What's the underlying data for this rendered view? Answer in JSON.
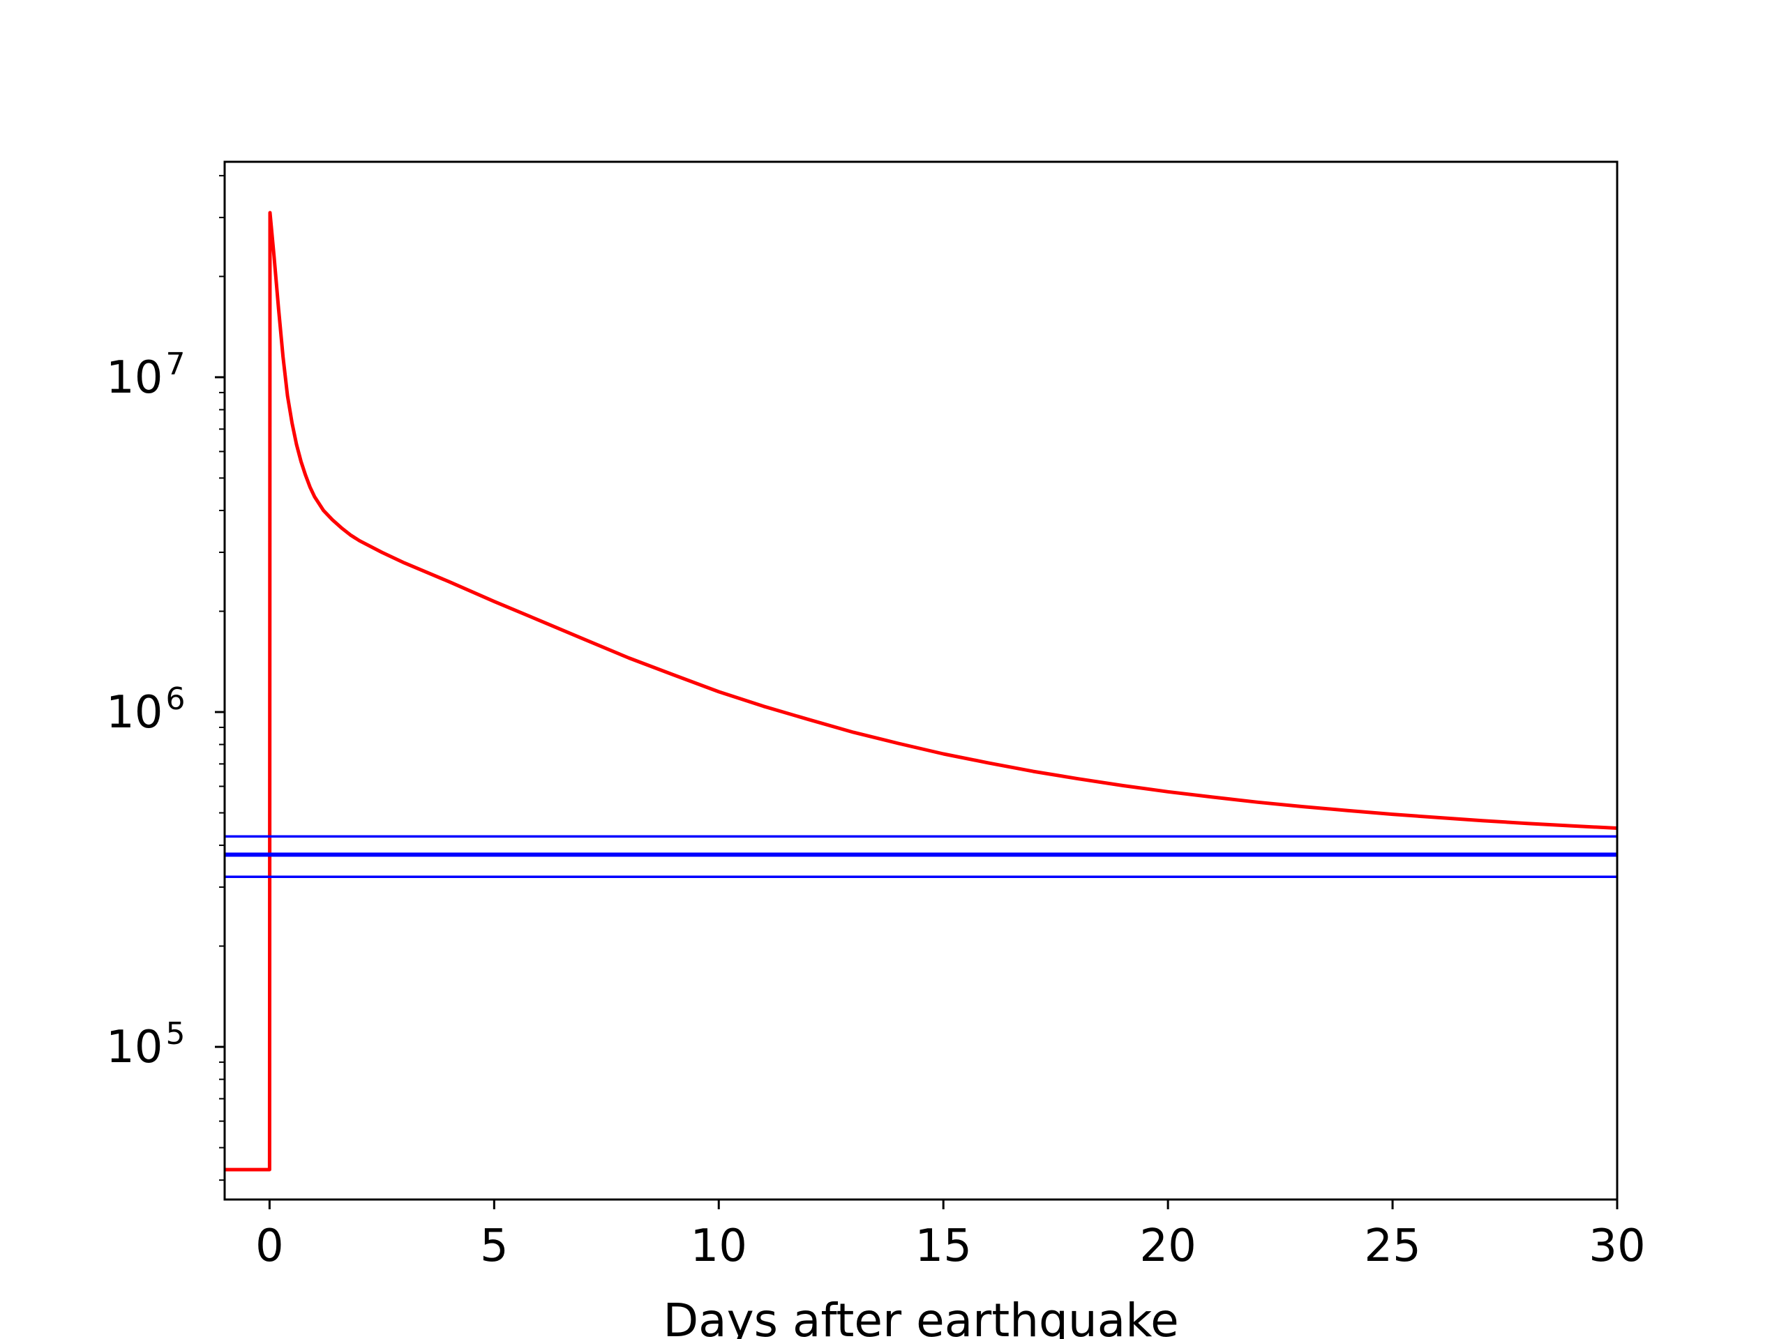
{
  "chart_data": {
    "type": "line",
    "title": "",
    "xlabel": "Days after earthquake",
    "ylabel": "",
    "xlim": [
      -1,
      30
    ],
    "ylim": [
      35000,
      44000000
    ],
    "yscale": "log",
    "grid": false,
    "legend": "none",
    "x_ticks": [
      "0",
      "5",
      "10",
      "15",
      "20",
      "25",
      "30"
    ],
    "x_tick_values": [
      0,
      5,
      10,
      15,
      20,
      25,
      30
    ],
    "y_ticks": [
      {
        "base": "10",
        "exp": "5",
        "value": 100000
      },
      {
        "base": "10",
        "exp": "6",
        "value": 1000000
      },
      {
        "base": "10",
        "exp": "7",
        "value": 10000000
      }
    ],
    "series": [
      {
        "color": "#ff0000",
        "x": [
          -1,
          0,
          0.01,
          0.1,
          0.2,
          0.3,
          0.4,
          0.5,
          0.6,
          0.7,
          0.8,
          0.9,
          1.0,
          1.2,
          1.4,
          1.6,
          1.8,
          2.0,
          2.5,
          3,
          4,
          5,
          6,
          7,
          8,
          9,
          10,
          11,
          12,
          13,
          14,
          15,
          16,
          17,
          18,
          19,
          20,
          21,
          22,
          23,
          24,
          25,
          26,
          27,
          28,
          29,
          30
        ],
        "y": [
          43000,
          43000,
          31000000,
          23000000,
          16000000,
          11500000,
          8800000,
          7300000,
          6300000,
          5600000,
          5100000,
          4700000,
          4400000,
          4000000,
          3750000,
          3550000,
          3380000,
          3250000,
          3000000,
          2790000,
          2450000,
          2140000,
          1880000,
          1650000,
          1450000,
          1290000,
          1150000,
          1040000,
          950000,
          870000,
          806000,
          750000,
          705000,
          665000,
          632000,
          603000,
          578000,
          557000,
          538000,
          522000,
          508000,
          495000,
          484000,
          474000,
          465000,
          457000,
          450000
        ]
      },
      {
        "color": "#0000ff",
        "width": "thin",
        "x": [
          -1,
          30
        ],
        "y": [
          425000,
          425000
        ]
      },
      {
        "color": "#0000ff",
        "width": "thick",
        "x": [
          -1,
          30
        ],
        "y": [
          375000,
          375000
        ]
      },
      {
        "color": "#0000ff",
        "width": "thin",
        "x": [
          -1,
          30
        ],
        "y": [
          322000,
          322000
        ]
      }
    ]
  }
}
